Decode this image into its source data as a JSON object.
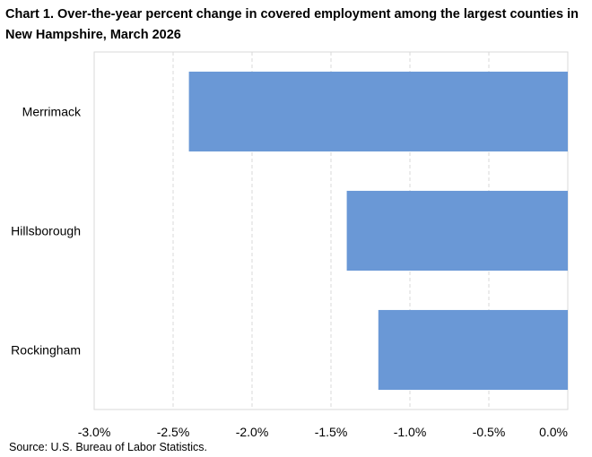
{
  "chart_data": {
    "type": "bar",
    "orientation": "horizontal",
    "title": "Chart 1. Over-the-year percent change in covered employment among the largest counties in New Hampshire,  March 2026",
    "categories": [
      "Merrimack",
      "Hillsborough",
      "Rockingham"
    ],
    "values": [
      -2.4,
      -1.4,
      -1.2
    ],
    "xlim": [
      -3.0,
      0.0
    ],
    "xticks": [
      -3.0,
      -2.5,
      -2.0,
      -1.5,
      -1.0,
      -0.5,
      0.0
    ],
    "xtick_labels": [
      "-3.0%",
      "-2.5%",
      "-2.0%",
      "-1.5%",
      "-1.0%",
      "-0.5%",
      "0.0%"
    ],
    "xlabel": "",
    "ylabel": "",
    "grid": "vertical dashed",
    "legend": "none",
    "bar_color": "#6a98d6",
    "source": "Source: U.S. Bureau of Labor Statistics."
  }
}
